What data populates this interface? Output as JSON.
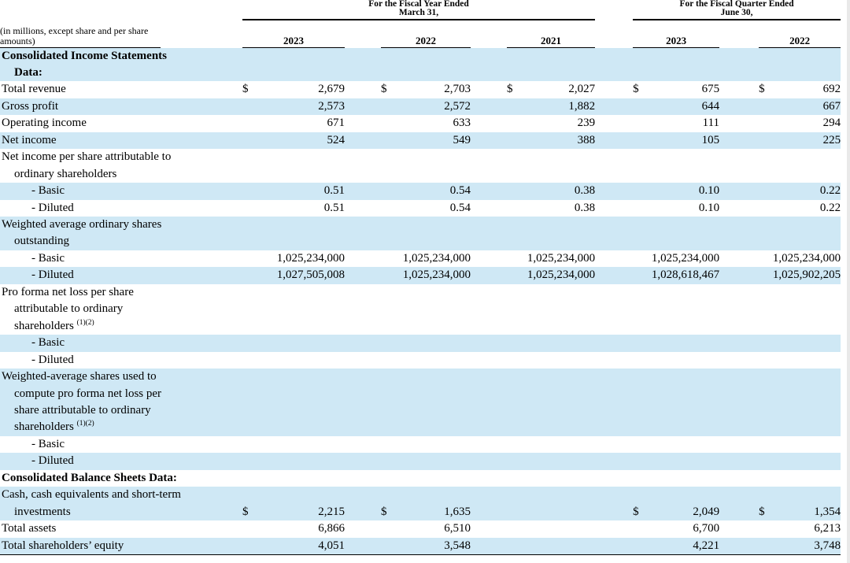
{
  "colors": {
    "row_highlight": "#cfe8f5",
    "rule": "#000000",
    "edge_strip": "#e9e9e9"
  },
  "table": {
    "note": "(in millions, except share and per share amounts)",
    "groups": [
      {
        "title1": "For the Fiscal Year Ended",
        "title2": "March 31,",
        "years": [
          "2023",
          "2022",
          "2021"
        ]
      },
      {
        "title1": "For the Fiscal Quarter Ended",
        "title2": "June 30,",
        "years": [
          "2023",
          "2022"
        ]
      }
    ],
    "rows": [
      {
        "name": "section-income-statements",
        "bold": true,
        "shaded": true,
        "lines": [
          {
            "t": "Consolidated Income Statements",
            "i": 0
          },
          {
            "t": "Data:",
            "i": 1
          }
        ],
        "cells": [
          {
            "d": "",
            "v": ""
          },
          {
            "d": "",
            "v": ""
          },
          {
            "d": "",
            "v": ""
          },
          {
            "d": "",
            "v": ""
          },
          {
            "d": "",
            "v": ""
          }
        ]
      },
      {
        "name": "row-total-revenue",
        "shaded": false,
        "lines": [
          {
            "t": "Total revenue",
            "i": 0
          }
        ],
        "cells": [
          {
            "d": "$",
            "v": "2,679"
          },
          {
            "d": "$",
            "v": "2,703"
          },
          {
            "d": "$",
            "v": "2,027"
          },
          {
            "d": "$",
            "v": "675"
          },
          {
            "d": "$",
            "v": "692"
          }
        ]
      },
      {
        "name": "row-gross-profit",
        "shaded": true,
        "lines": [
          {
            "t": "Gross profit",
            "i": 0
          }
        ],
        "cells": [
          {
            "d": "",
            "v": "2,573"
          },
          {
            "d": "",
            "v": "2,572"
          },
          {
            "d": "",
            "v": "1,882"
          },
          {
            "d": "",
            "v": "644"
          },
          {
            "d": "",
            "v": "667"
          }
        ]
      },
      {
        "name": "row-operating-income",
        "shaded": false,
        "lines": [
          {
            "t": "Operating income",
            "i": 0
          }
        ],
        "cells": [
          {
            "d": "",
            "v": "671"
          },
          {
            "d": "",
            "v": "633"
          },
          {
            "d": "",
            "v": "239"
          },
          {
            "d": "",
            "v": "111"
          },
          {
            "d": "",
            "v": "294"
          }
        ]
      },
      {
        "name": "row-net-income",
        "shaded": true,
        "lines": [
          {
            "t": "Net income",
            "i": 0
          }
        ],
        "cells": [
          {
            "d": "",
            "v": "524"
          },
          {
            "d": "",
            "v": "549"
          },
          {
            "d": "",
            "v": "388"
          },
          {
            "d": "",
            "v": "105"
          },
          {
            "d": "",
            "v": "225"
          }
        ]
      },
      {
        "name": "label-net-income-per-share",
        "shaded": false,
        "lines": [
          {
            "t": "Net income per share attributable to",
            "i": 0
          },
          {
            "t": "ordinary shareholders",
            "i": 1
          }
        ],
        "cells": [
          {
            "d": "",
            "v": ""
          },
          {
            "d": "",
            "v": ""
          },
          {
            "d": "",
            "v": ""
          },
          {
            "d": "",
            "v": ""
          },
          {
            "d": "",
            "v": ""
          }
        ]
      },
      {
        "name": "row-nips-basic",
        "shaded": true,
        "lines": [
          {
            "t": "- Basic",
            "i": 2
          }
        ],
        "cells": [
          {
            "d": "",
            "v": "0.51"
          },
          {
            "d": "",
            "v": "0.54"
          },
          {
            "d": "",
            "v": "0.38"
          },
          {
            "d": "",
            "v": "0.10"
          },
          {
            "d": "",
            "v": "0.22"
          }
        ]
      },
      {
        "name": "row-nips-diluted",
        "shaded": false,
        "lines": [
          {
            "t": "- Diluted",
            "i": 2
          }
        ],
        "cells": [
          {
            "d": "",
            "v": "0.51"
          },
          {
            "d": "",
            "v": "0.54"
          },
          {
            "d": "",
            "v": "0.38"
          },
          {
            "d": "",
            "v": "0.10"
          },
          {
            "d": "",
            "v": "0.22"
          }
        ]
      },
      {
        "name": "label-weighted-average-shares",
        "shaded": true,
        "lines": [
          {
            "t": "Weighted average ordinary shares",
            "i": 0
          },
          {
            "t": "outstanding",
            "i": 1
          }
        ],
        "cells": [
          {
            "d": "",
            "v": ""
          },
          {
            "d": "",
            "v": ""
          },
          {
            "d": "",
            "v": ""
          },
          {
            "d": "",
            "v": ""
          },
          {
            "d": "",
            "v": ""
          }
        ]
      },
      {
        "name": "row-was-basic",
        "shaded": false,
        "lines": [
          {
            "t": "- Basic",
            "i": 2
          }
        ],
        "cells": [
          {
            "d": "",
            "v": "1,025,234,000"
          },
          {
            "d": "",
            "v": "1,025,234,000"
          },
          {
            "d": "",
            "v": "1,025,234,000"
          },
          {
            "d": "",
            "v": "1,025,234,000"
          },
          {
            "d": "",
            "v": "1,025,234,000"
          }
        ]
      },
      {
        "name": "row-was-diluted",
        "shaded": true,
        "lines": [
          {
            "t": "- Diluted",
            "i": 2
          }
        ],
        "cells": [
          {
            "d": "",
            "v": "1,027,505,008"
          },
          {
            "d": "",
            "v": "1,025,234,000"
          },
          {
            "d": "",
            "v": "1,025,234,000"
          },
          {
            "d": "",
            "v": "1,028,618,467"
          },
          {
            "d": "",
            "v": "1,025,902,205"
          }
        ]
      },
      {
        "name": "label-pro-forma-net-loss",
        "shaded": false,
        "lines": [
          {
            "t": "Pro forma net loss per share",
            "i": 0
          },
          {
            "t": "attributable to ordinary",
            "i": 1
          },
          {
            "t": "shareholders ",
            "i": 1,
            "sup": "(1)(2)"
          }
        ],
        "cells": [
          {
            "d": "",
            "v": ""
          },
          {
            "d": "",
            "v": ""
          },
          {
            "d": "",
            "v": ""
          },
          {
            "d": "",
            "v": ""
          },
          {
            "d": "",
            "v": ""
          }
        ]
      },
      {
        "name": "row-proforma-basic",
        "shaded": true,
        "lines": [
          {
            "t": "- Basic",
            "i": 2
          }
        ],
        "cells": [
          {
            "d": "",
            "v": ""
          },
          {
            "d": "",
            "v": ""
          },
          {
            "d": "",
            "v": ""
          },
          {
            "d": "",
            "v": ""
          },
          {
            "d": "",
            "v": ""
          }
        ]
      },
      {
        "name": "row-proforma-diluted",
        "shaded": false,
        "lines": [
          {
            "t": "- Diluted",
            "i": 2
          }
        ],
        "cells": [
          {
            "d": "",
            "v": ""
          },
          {
            "d": "",
            "v": ""
          },
          {
            "d": "",
            "v": ""
          },
          {
            "d": "",
            "v": ""
          },
          {
            "d": "",
            "v": ""
          }
        ]
      },
      {
        "name": "label-wa-proforma-shares",
        "shaded": true,
        "lines": [
          {
            "t": "Weighted-average shares used to",
            "i": 0
          },
          {
            "t": "compute pro forma net loss per",
            "i": 1
          },
          {
            "t": "share attributable to ordinary",
            "i": 1
          },
          {
            "t": "shareholders ",
            "i": 1,
            "sup": "(1)(2)"
          }
        ],
        "cells": [
          {
            "d": "",
            "v": ""
          },
          {
            "d": "",
            "v": ""
          },
          {
            "d": "",
            "v": ""
          },
          {
            "d": "",
            "v": ""
          },
          {
            "d": "",
            "v": ""
          }
        ]
      },
      {
        "name": "row-wa-proforma-basic",
        "shaded": false,
        "lines": [
          {
            "t": "- Basic",
            "i": 2
          }
        ],
        "cells": [
          {
            "d": "",
            "v": ""
          },
          {
            "d": "",
            "v": ""
          },
          {
            "d": "",
            "v": ""
          },
          {
            "d": "",
            "v": ""
          },
          {
            "d": "",
            "v": ""
          }
        ]
      },
      {
        "name": "row-wa-proforma-diluted",
        "shaded": true,
        "lines": [
          {
            "t": "- Diluted",
            "i": 2
          }
        ],
        "cells": [
          {
            "d": "",
            "v": ""
          },
          {
            "d": "",
            "v": ""
          },
          {
            "d": "",
            "v": ""
          },
          {
            "d": "",
            "v": ""
          },
          {
            "d": "",
            "v": ""
          }
        ]
      },
      {
        "name": "section-balance-sheets",
        "bold": true,
        "shaded": false,
        "lines": [
          {
            "t": "Consolidated Balance Sheets Data:",
            "i": 0
          }
        ],
        "cells": [
          {
            "d": "",
            "v": ""
          },
          {
            "d": "",
            "v": ""
          },
          {
            "d": "",
            "v": ""
          },
          {
            "d": "",
            "v": ""
          },
          {
            "d": "",
            "v": ""
          }
        ]
      },
      {
        "name": "row-cash-and-investments",
        "shaded": true,
        "lines": [
          {
            "t": "Cash, cash equivalents and short-term",
            "i": 0
          },
          {
            "t": "investments",
            "i": 1
          }
        ],
        "cells": [
          {
            "d": "$",
            "v": "2,215"
          },
          {
            "d": "$",
            "v": "1,635"
          },
          {
            "d": "",
            "v": ""
          },
          {
            "d": "$",
            "v": "2,049"
          },
          {
            "d": "$",
            "v": "1,354"
          }
        ]
      },
      {
        "name": "row-total-assets",
        "shaded": false,
        "lines": [
          {
            "t": "Total assets",
            "i": 0
          }
        ],
        "cells": [
          {
            "d": "",
            "v": "6,866"
          },
          {
            "d": "",
            "v": "6,510"
          },
          {
            "d": "",
            "v": ""
          },
          {
            "d": "",
            "v": "6,700"
          },
          {
            "d": "",
            "v": "6,213"
          }
        ]
      },
      {
        "name": "row-total-shareholders-equity",
        "shaded": true,
        "last": true,
        "lines": [
          {
            "t": "Total shareholders’ equity",
            "i": 0
          }
        ],
        "cells": [
          {
            "d": "",
            "v": "4,051"
          },
          {
            "d": "",
            "v": "3,548"
          },
          {
            "d": "",
            "v": ""
          },
          {
            "d": "",
            "v": "4,221"
          },
          {
            "d": "",
            "v": "3,748"
          }
        ]
      }
    ]
  }
}
